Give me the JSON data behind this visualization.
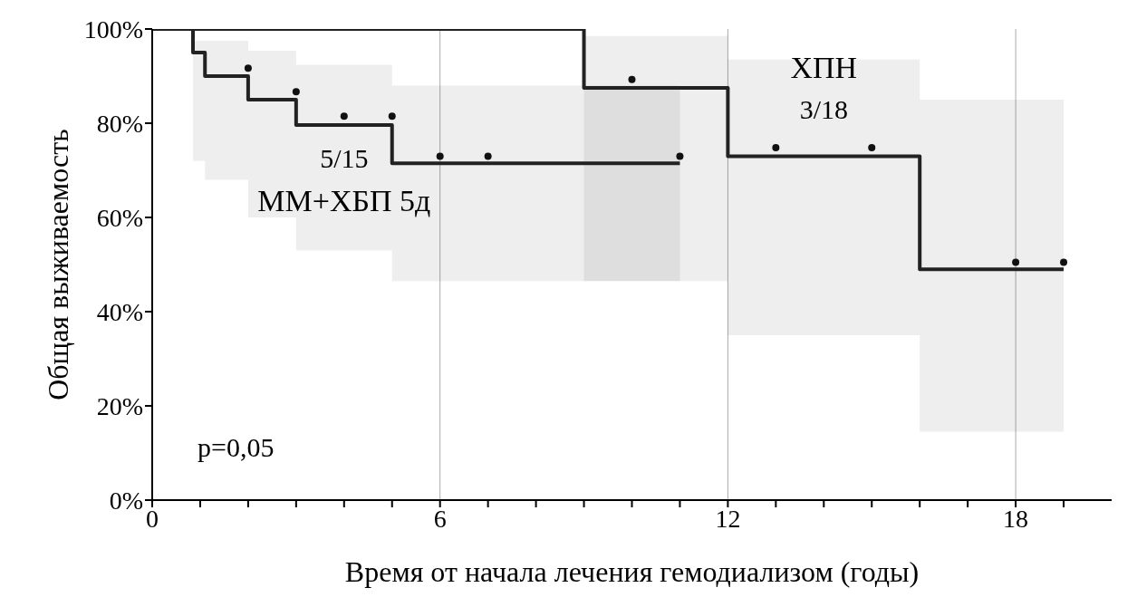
{
  "chart_data": {
    "type": "step",
    "xlabel": "Время от начала лечения гемодиализом (годы)",
    "ylabel": "Общая выживаемость",
    "xlim": [
      0,
      20
    ],
    "xticks": [
      0,
      {
        "value": 1,
        "label": null
      },
      {
        "value": 2,
        "label": null
      },
      {
        "value": 3,
        "label": null
      },
      {
        "value": 4,
        "label": null
      },
      {
        "value": 5,
        "label": null
      },
      6,
      {
        "value": 7,
        "label": null
      },
      {
        "value": 8,
        "label": null
      },
      {
        "value": 9,
        "label": null
      },
      {
        "value": 10,
        "label": null
      },
      {
        "value": 11,
        "label": null
      },
      12,
      {
        "value": 13,
        "label": null
      },
      {
        "value": 14,
        "label": null
      },
      {
        "value": 15,
        "label": null
      },
      {
        "value": 16,
        "label": null
      },
      {
        "value": 17,
        "label": null
      },
      18,
      {
        "value": 19,
        "label": null
      }
    ],
    "ylim": [
      0,
      100
    ],
    "yticks": [
      {
        "value": 0,
        "label": "0%"
      },
      {
        "value": 20,
        "label": "20%"
      },
      {
        "value": 40,
        "label": "40%"
      },
      {
        "value": 60,
        "label": "60%"
      },
      {
        "value": 80,
        "label": "80%"
      },
      {
        "value": 100,
        "label": "100%"
      }
    ],
    "grid": "x",
    "legend": false,
    "series": [
      {
        "name": "ММ+ХБП 5д",
        "color": "#222222",
        "x": [
          0,
          0.85,
          1.1,
          2,
          3,
          5,
          11
        ],
        "values": [
          100,
          95,
          90,
          85,
          79.6,
          71.5,
          71.5
        ],
        "upper": [
          null,
          97.5,
          97.5,
          95.4,
          92.4,
          88,
          88
        ],
        "lower": [
          null,
          72,
          68,
          60,
          53,
          46.5,
          46.5
        ]
      },
      {
        "name": "ХПН",
        "color": "#222222",
        "x": [
          0,
          9,
          12,
          16,
          19
        ],
        "values": [
          100,
          87.5,
          73,
          49,
          49
        ],
        "upper": [
          null,
          98.5,
          93.5,
          85,
          85
        ],
        "lower": [
          null,
          46.5,
          35,
          14.5,
          14.5
        ]
      },
      {
        "type": "scatter",
        "marker": "circle",
        "color": "#111111",
        "x": [
          2,
          3,
          4,
          5,
          6,
          7,
          11
        ],
        "values": [
          91.7,
          86.7,
          81.5,
          81.5,
          73,
          73,
          73
        ]
      },
      {
        "type": "scatter",
        "marker": "circle",
        "color": "#111111",
        "x": [
          10,
          13,
          15,
          18,
          19
        ],
        "values": [
          89.3,
          74.8,
          74.8,
          50.5,
          50.5
        ]
      }
    ],
    "annotations": [
      "5/15",
      "3/18",
      "p=0,05"
    ]
  }
}
